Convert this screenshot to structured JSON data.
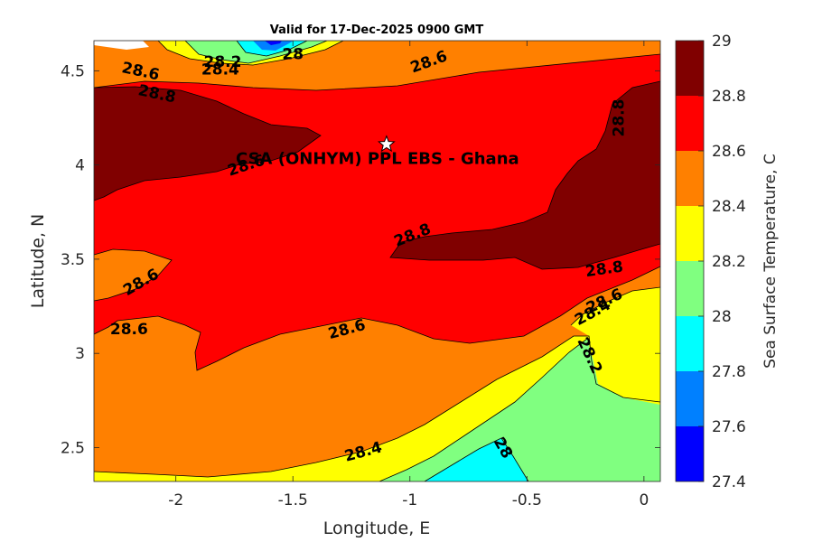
{
  "chart_data": {
    "type": "contour",
    "title": "Valid for 17-Dec-2025 0900 GMT",
    "xlabel": "Longitude, E",
    "ylabel": "Latitude, N",
    "xlim": [
      -2.35,
      0.07
    ],
    "ylim": [
      2.32,
      4.66
    ],
    "xticks": [
      -2,
      -1.5,
      -1,
      -0.5,
      0
    ],
    "xtick_labels": [
      "-2",
      "-1.5",
      "-1",
      "-0.5",
      "0"
    ],
    "yticks": [
      2.5,
      3,
      3.5,
      4,
      4.5
    ],
    "ytick_labels": [
      "2.5",
      "3",
      "3.5",
      "4",
      "4.5"
    ],
    "grid": false,
    "site": {
      "name": "CSA (ONHYM) PPL EBS  - Ghana",
      "lon": -1.1,
      "lat": 4.11
    },
    "colorbar": {
      "label": "Sea Surface Temperature, C",
      "levels": [
        27.4,
        27.6,
        27.8,
        28,
        28.2,
        28.4,
        28.6,
        28.8,
        29
      ],
      "tick_labels": [
        "27.4",
        "27.6",
        "27.8",
        "28",
        "28.2",
        "28.4",
        "28.6",
        "28.8",
        "29"
      ],
      "colors": [
        "#0000ff",
        "#0080ff",
        "#00ffff",
        "#80ff80",
        "#ffff00",
        "#ff8000",
        "#ff0000",
        "#800000"
      ]
    },
    "contour_labels": [
      {
        "text": "28.2",
        "lon": -1.8,
        "lat": 4.55,
        "angle": 0
      },
      {
        "text": "28.4",
        "lon": -1.81,
        "lat": 4.51,
        "angle": 0
      },
      {
        "text": "28",
        "lon": -1.5,
        "lat": 4.59,
        "angle": 0
      },
      {
        "text": "28.6",
        "lon": -2.15,
        "lat": 4.5,
        "angle": 12
      },
      {
        "text": "28.8",
        "lon": -2.08,
        "lat": 4.38,
        "angle": 12
      },
      {
        "text": "28.6",
        "lon": -0.92,
        "lat": 4.55,
        "angle": -20
      },
      {
        "text": "28.8",
        "lon": -0.11,
        "lat": 4.25,
        "angle": -90
      },
      {
        "text": "28.6",
        "lon": -1.7,
        "lat": 4.0,
        "angle": -18
      },
      {
        "text": "28.8",
        "lon": -0.99,
        "lat": 3.63,
        "angle": -22
      },
      {
        "text": "28.6",
        "lon": -2.15,
        "lat": 3.38,
        "angle": -30
      },
      {
        "text": "28.8",
        "lon": -0.17,
        "lat": 3.45,
        "angle": -8
      },
      {
        "text": "28.6",
        "lon": -0.17,
        "lat": 3.28,
        "angle": -25
      },
      {
        "text": "28.4",
        "lon": -0.22,
        "lat": 3.22,
        "angle": -28
      },
      {
        "text": "28.6",
        "lon": -2.2,
        "lat": 3.13,
        "angle": 0
      },
      {
        "text": "28.6",
        "lon": -1.27,
        "lat": 3.13,
        "angle": -15
      },
      {
        "text": "28.2",
        "lon": -0.23,
        "lat": 2.99,
        "angle": 65
      },
      {
        "text": "28.4",
        "lon": -1.2,
        "lat": 2.48,
        "angle": -15
      },
      {
        "text": "28",
        "lon": -0.6,
        "lat": 2.5,
        "angle": 60
      }
    ]
  }
}
